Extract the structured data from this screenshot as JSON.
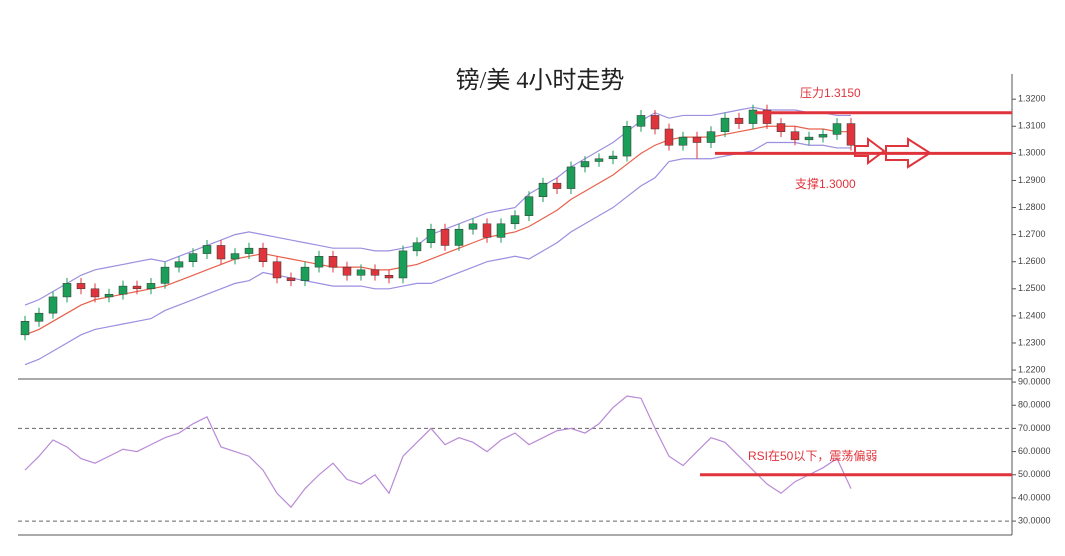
{
  "chart_data": [
    {
      "type": "candlestick",
      "title": "镑/美 4小时走势",
      "up_color": "#1a9e58",
      "down_color": "#e0343c",
      "candles": [
        [
          1.233,
          1.24,
          1.231,
          1.238
        ],
        [
          1.238,
          1.243,
          1.236,
          1.241
        ],
        [
          1.241,
          1.249,
          1.239,
          1.247
        ],
        [
          1.247,
          1.254,
          1.245,
          1.252
        ],
        [
          1.252,
          1.254,
          1.248,
          1.25
        ],
        [
          1.25,
          1.252,
          1.245,
          1.247
        ],
        [
          1.247,
          1.25,
          1.245,
          1.248
        ],
        [
          1.248,
          1.253,
          1.246,
          1.251
        ],
        [
          1.251,
          1.253,
          1.248,
          1.25
        ],
        [
          1.25,
          1.254,
          1.248,
          1.252
        ],
        [
          1.252,
          1.26,
          1.25,
          1.258
        ],
        [
          1.258,
          1.262,
          1.256,
          1.26
        ],
        [
          1.26,
          1.265,
          1.258,
          1.263
        ],
        [
          1.263,
          1.268,
          1.261,
          1.266
        ],
        [
          1.266,
          1.268,
          1.259,
          1.261
        ],
        [
          1.261,
          1.265,
          1.259,
          1.263
        ],
        [
          1.263,
          1.267,
          1.261,
          1.265
        ],
        [
          1.265,
          1.267,
          1.258,
          1.26
        ],
        [
          1.26,
          1.262,
          1.252,
          1.254
        ],
        [
          1.254,
          1.256,
          1.251,
          1.253
        ],
        [
          1.253,
          1.26,
          1.251,
          1.258
        ],
        [
          1.258,
          1.264,
          1.256,
          1.262
        ],
        [
          1.262,
          1.264,
          1.256,
          1.258
        ],
        [
          1.258,
          1.26,
          1.253,
          1.255
        ],
        [
          1.255,
          1.259,
          1.253,
          1.257
        ],
        [
          1.257,
          1.259,
          1.253,
          1.255
        ],
        [
          1.255,
          1.257,
          1.252,
          1.254
        ],
        [
          1.254,
          1.266,
          1.252,
          1.264
        ],
        [
          1.264,
          1.269,
          1.262,
          1.267
        ],
        [
          1.267,
          1.274,
          1.265,
          1.272
        ],
        [
          1.272,
          1.274,
          1.264,
          1.266
        ],
        [
          1.266,
          1.274,
          1.264,
          1.272
        ],
        [
          1.272,
          1.276,
          1.27,
          1.274
        ],
        [
          1.274,
          1.276,
          1.267,
          1.269
        ],
        [
          1.269,
          1.276,
          1.267,
          1.274
        ],
        [
          1.274,
          1.279,
          1.272,
          1.277
        ],
        [
          1.277,
          1.286,
          1.275,
          1.284
        ],
        [
          1.284,
          1.291,
          1.282,
          1.289
        ],
        [
          1.289,
          1.291,
          1.285,
          1.287
        ],
        [
          1.287,
          1.297,
          1.285,
          1.295
        ],
        [
          1.295,
          1.299,
          1.293,
          1.297
        ],
        [
          1.297,
          1.3,
          1.295,
          1.298
        ],
        [
          1.298,
          1.301,
          1.296,
          1.299
        ],
        [
          1.299,
          1.312,
          1.297,
          1.31
        ],
        [
          1.31,
          1.316,
          1.308,
          1.314
        ],
        [
          1.314,
          1.316,
          1.307,
          1.309
        ],
        [
          1.309,
          1.311,
          1.301,
          1.303
        ],
        [
          1.303,
          1.308,
          1.301,
          1.306
        ],
        [
          1.306,
          1.308,
          1.298,
          1.304
        ],
        [
          1.304,
          1.31,
          1.302,
          1.308
        ],
        [
          1.308,
          1.315,
          1.306,
          1.313
        ],
        [
          1.313,
          1.315,
          1.309,
          1.311
        ],
        [
          1.311,
          1.318,
          1.309,
          1.316
        ],
        [
          1.316,
          1.318,
          1.309,
          1.311
        ],
        [
          1.311,
          1.313,
          1.306,
          1.308
        ],
        [
          1.308,
          1.31,
          1.303,
          1.305
        ],
        [
          1.305,
          1.308,
          1.303,
          1.306
        ],
        [
          1.306,
          1.309,
          1.304,
          1.307
        ],
        [
          1.307,
          1.313,
          1.305,
          1.311
        ],
        [
          1.311,
          1.313,
          1.301,
          1.303
        ]
      ],
      "series": [
        {
          "color": "#9b8fe0",
          "values": [
            1.244,
            1.246,
            1.249,
            1.252,
            1.255,
            1.257,
            1.258,
            1.259,
            1.26,
            1.261,
            1.26,
            1.262,
            1.264,
            1.266,
            1.268,
            1.27,
            1.271,
            1.27,
            1.269,
            1.268,
            1.267,
            1.266,
            1.265,
            1.265,
            1.265,
            1.264,
            1.264,
            1.265,
            1.266,
            1.27,
            1.272,
            1.274,
            1.276,
            1.278,
            1.279,
            1.28,
            1.285,
            1.288,
            1.291,
            1.295,
            1.298,
            1.301,
            1.304,
            1.308,
            1.312,
            1.315,
            1.313,
            1.314,
            1.314,
            1.314,
            1.315,
            1.316,
            1.317,
            1.316,
            1.316,
            1.316,
            1.315,
            1.315,
            1.314,
            1.314
          ]
        },
        {
          "color": "#e8604a",
          "values": [
            1.233,
            1.235,
            1.238,
            1.241,
            1.244,
            1.246,
            1.247,
            1.248,
            1.249,
            1.25,
            1.251,
            1.253,
            1.255,
            1.257,
            1.259,
            1.261,
            1.262,
            1.263,
            1.262,
            1.261,
            1.26,
            1.259,
            1.258,
            1.258,
            1.258,
            1.257,
            1.257,
            1.258,
            1.259,
            1.261,
            1.263,
            1.265,
            1.267,
            1.269,
            1.27,
            1.271,
            1.273,
            1.276,
            1.279,
            1.283,
            1.286,
            1.289,
            1.292,
            1.296,
            1.3,
            1.303,
            1.305,
            1.306,
            1.306,
            1.306,
            1.307,
            1.308,
            1.309,
            1.31,
            1.31,
            1.31,
            1.309,
            1.309,
            1.308,
            1.308
          ]
        },
        {
          "color": "#9b8fe0",
          "values": [
            1.222,
            1.224,
            1.227,
            1.23,
            1.233,
            1.235,
            1.236,
            1.237,
            1.238,
            1.239,
            1.242,
            1.244,
            1.246,
            1.248,
            1.25,
            1.252,
            1.253,
            1.256,
            1.255,
            1.254,
            1.253,
            1.252,
            1.251,
            1.251,
            1.251,
            1.25,
            1.25,
            1.251,
            1.252,
            1.252,
            1.254,
            1.256,
            1.258,
            1.26,
            1.261,
            1.262,
            1.261,
            1.264,
            1.267,
            1.271,
            1.274,
            1.277,
            1.28,
            1.284,
            1.288,
            1.291,
            1.297,
            1.298,
            1.298,
            1.298,
            1.299,
            1.3,
            1.301,
            1.304,
            1.304,
            1.304,
            1.303,
            1.303,
            1.302,
            1.302
          ]
        }
      ],
      "levels": [
        {
          "label": "压力1.3150",
          "value": 1.315
        },
        {
          "label": "支撑1.3000",
          "value": 1.3
        }
      ],
      "ylim": [
        1.2167,
        1.3293
      ],
      "yticks": [
        {
          "value": 1.22,
          "label": "1.2200"
        },
        {
          "value": 1.23,
          "label": "1.2300"
        },
        {
          "value": 1.24,
          "label": "1.2400"
        },
        {
          "value": 1.25,
          "label": "1.2500"
        },
        {
          "value": 1.26,
          "label": "1.2600"
        },
        {
          "value": 1.27,
          "label": "1.2700"
        },
        {
          "value": 1.28,
          "label": "1.2800"
        },
        {
          "value": 1.29,
          "label": "1.2900"
        },
        {
          "value": 1.3,
          "label": "1.3000"
        },
        {
          "value": 1.31,
          "label": "1.3100"
        },
        {
          "value": 1.32,
          "label": "1.3200"
        }
      ]
    },
    {
      "type": "line",
      "series": [
        {
          "color": "#b98ad6",
          "values": [
            52,
            58,
            65,
            62,
            57,
            55,
            58,
            61,
            60,
            63,
            66,
            68,
            72,
            75,
            62,
            60,
            58,
            52,
            42,
            36,
            44,
            50,
            55,
            48,
            46,
            50,
            42,
            58,
            64,
            70,
            63,
            66,
            64,
            60,
            65,
            68,
            63,
            66,
            69,
            70,
            68,
            72,
            79,
            84,
            83,
            70,
            58,
            54,
            60,
            66,
            64,
            58,
            52,
            46,
            42,
            47,
            50,
            53,
            57,
            44
          ]
        }
      ],
      "levels": [
        {
          "label": "RSI在50以下，震荡偏弱",
          "value": 50
        }
      ],
      "dashed_grid": [
        70,
        30
      ],
      "ylim": [
        24,
        90.9
      ],
      "yticks": [
        {
          "value": 30,
          "label": "30.0000"
        },
        {
          "value": 40,
          "label": "40.0000"
        },
        {
          "value": 50,
          "label": "50.0000"
        },
        {
          "value": 60,
          "label": "60.0000"
        },
        {
          "value": 70,
          "label": "70.0000"
        },
        {
          "value": 80,
          "label": "80.0000"
        },
        {
          "value": 90,
          "label": "90.0000"
        }
      ]
    }
  ]
}
